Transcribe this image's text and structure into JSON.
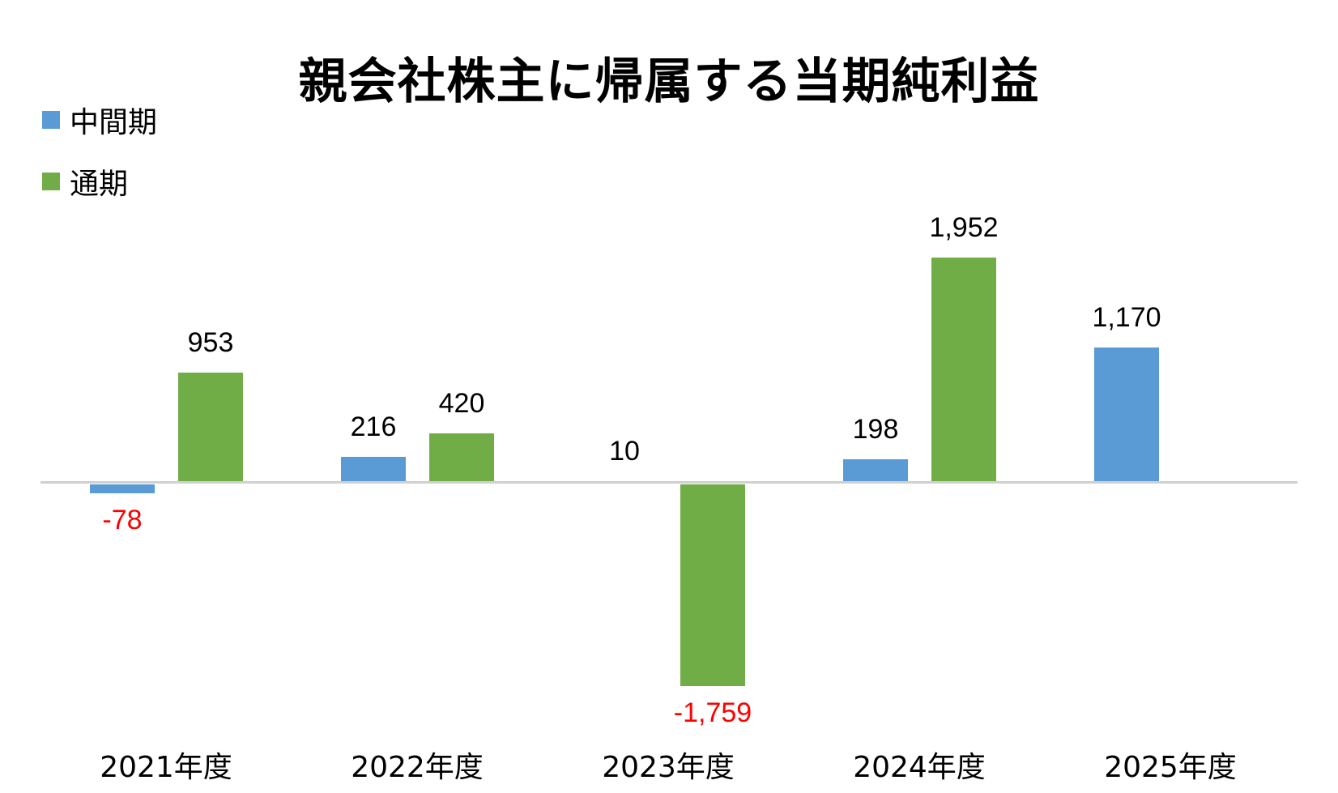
{
  "chart": {
    "title": "親会社株主に帰属する当期純利益",
    "legend": [
      {
        "name": "中間期",
        "color": "#5b9bd5"
      },
      {
        "name": "通期",
        "color": "#70ad47"
      }
    ],
    "negative_label_color": "#ff0000",
    "axis_color": "#d0d0d0"
  },
  "chart_data": {
    "type": "bar",
    "title": "親会社株主に帰属する当期純利益",
    "xlabel": "",
    "ylabel": "",
    "categories": [
      "2021年度",
      "2022年度",
      "2023年度",
      "2024年度",
      "2025年度"
    ],
    "series": [
      {
        "name": "中間期",
        "color": "#5b9bd5",
        "values": [
          -78,
          216,
          10,
          198,
          1170
        ],
        "labels": [
          "-78",
          "216",
          "10",
          "198",
          "1,170"
        ]
      },
      {
        "name": "通期",
        "color": "#70ad47",
        "values": [
          953,
          420,
          -1759,
          1952,
          null
        ],
        "labels": [
          "953",
          "420",
          "-1,759",
          "1,952",
          ""
        ]
      }
    ],
    "grid": false,
    "y_axis_visible": false,
    "legend_position": "top-left",
    "data_labels": true,
    "ylim": [
      -1900,
      2300
    ]
  }
}
